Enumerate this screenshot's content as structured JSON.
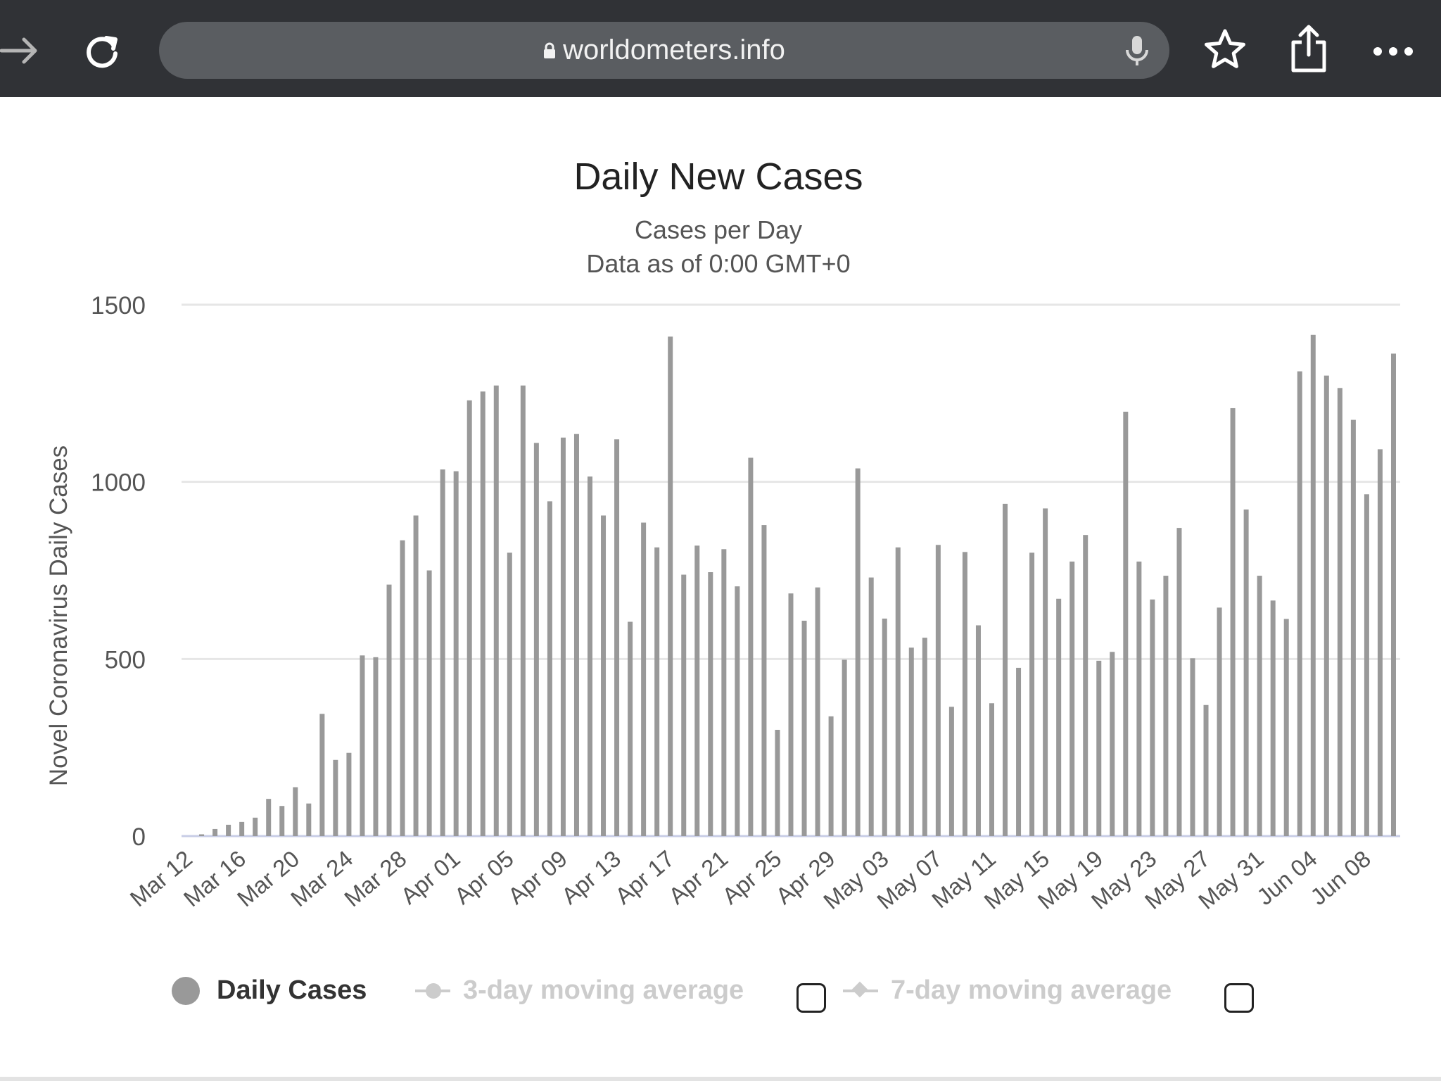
{
  "browser": {
    "url": "worldometers.info",
    "icons": [
      "forward-icon",
      "reload-icon",
      "lock-icon",
      "microphone-icon",
      "bookmark-star-icon",
      "share-icon",
      "more-icon"
    ]
  },
  "chart_data": {
    "type": "bar",
    "title": "Daily New Cases",
    "subtitle": "Cases per Day",
    "subtitle2": "Data as of 0:00 GMT+0",
    "ylabel": "Novel Coronavirus Daily Cases",
    "xlabel": "",
    "ylim": [
      0,
      1500
    ],
    "yticks": [
      0,
      500,
      1000,
      1500
    ],
    "grid": true,
    "bar_color": "#999999",
    "categories": [
      "Mar 12",
      "Mar 13",
      "Mar 14",
      "Mar 15",
      "Mar 16",
      "Mar 17",
      "Mar 18",
      "Mar 19",
      "Mar 20",
      "Mar 21",
      "Mar 22",
      "Mar 23",
      "Mar 24",
      "Mar 25",
      "Mar 26",
      "Mar 27",
      "Mar 28",
      "Mar 29",
      "Mar 30",
      "Mar 31",
      "Apr 01",
      "Apr 02",
      "Apr 03",
      "Apr 04",
      "Apr 05",
      "Apr 06",
      "Apr 07",
      "Apr 08",
      "Apr 09",
      "Apr 10",
      "Apr 11",
      "Apr 12",
      "Apr 13",
      "Apr 14",
      "Apr 15",
      "Apr 16",
      "Apr 17",
      "Apr 18",
      "Apr 19",
      "Apr 20",
      "Apr 21",
      "Apr 22",
      "Apr 23",
      "Apr 24",
      "Apr 25",
      "Apr 26",
      "Apr 27",
      "Apr 28",
      "Apr 29",
      "Apr 30",
      "May 01",
      "May 02",
      "May 03",
      "May 04",
      "May 05",
      "May 06",
      "May 07",
      "May 08",
      "May 09",
      "May 10",
      "May 11",
      "May 12",
      "May 13",
      "May 14",
      "May 15",
      "May 16",
      "May 17",
      "May 18",
      "May 19",
      "May 20",
      "May 21",
      "May 22",
      "May 23",
      "May 24",
      "May 25",
      "May 26",
      "May 27",
      "May 28",
      "May 29",
      "May 30",
      "May 31",
      "Jun 01",
      "Jun 02",
      "Jun 03",
      "Jun 04",
      "Jun 05",
      "Jun 06",
      "Jun 07",
      "Jun 08",
      "Jun 09",
      "Jun 10"
    ],
    "tick_labels": [
      "Mar 12",
      "Mar 16",
      "Mar 20",
      "Mar 24",
      "Mar 28",
      "Apr 01",
      "Apr 05",
      "Apr 09",
      "Apr 13",
      "Apr 17",
      "Apr 21",
      "Apr 25",
      "Apr 29",
      "May 03",
      "May 07",
      "May 11",
      "May 15",
      "May 19",
      "May 23",
      "May 27",
      "May 31",
      "Jun 04",
      "Jun 08"
    ],
    "series": [
      {
        "name": "Daily Cases",
        "values": [
          0,
          5,
          20,
          32,
          40,
          52,
          105,
          85,
          138,
          92,
          345,
          215,
          235,
          510,
          505,
          710,
          835,
          905,
          750,
          1035,
          1030,
          1230,
          1255,
          1272,
          800,
          1272,
          1110,
          945,
          1125,
          1135,
          1015,
          905,
          1120,
          605,
          885,
          815,
          1410,
          738,
          820,
          745,
          810,
          705,
          1068,
          878,
          300,
          685,
          608,
          702,
          338,
          498,
          1038,
          730,
          614,
          815,
          532,
          560,
          822,
          365,
          802,
          595,
          375,
          938,
          475,
          800,
          925,
          670,
          775,
          850,
          495,
          520,
          1198,
          775,
          668,
          735,
          870,
          502,
          370,
          645,
          1208,
          922,
          735,
          665,
          613,
          1312,
          1415,
          1300,
          1265,
          1175,
          965,
          1092,
          1362
        ]
      }
    ],
    "legend": {
      "position": "bottom",
      "items": [
        {
          "label": "Daily Cases",
          "active": true
        },
        {
          "label": "3-day moving average",
          "active": false
        },
        {
          "label": "7-day moving average",
          "active": false
        }
      ]
    }
  }
}
